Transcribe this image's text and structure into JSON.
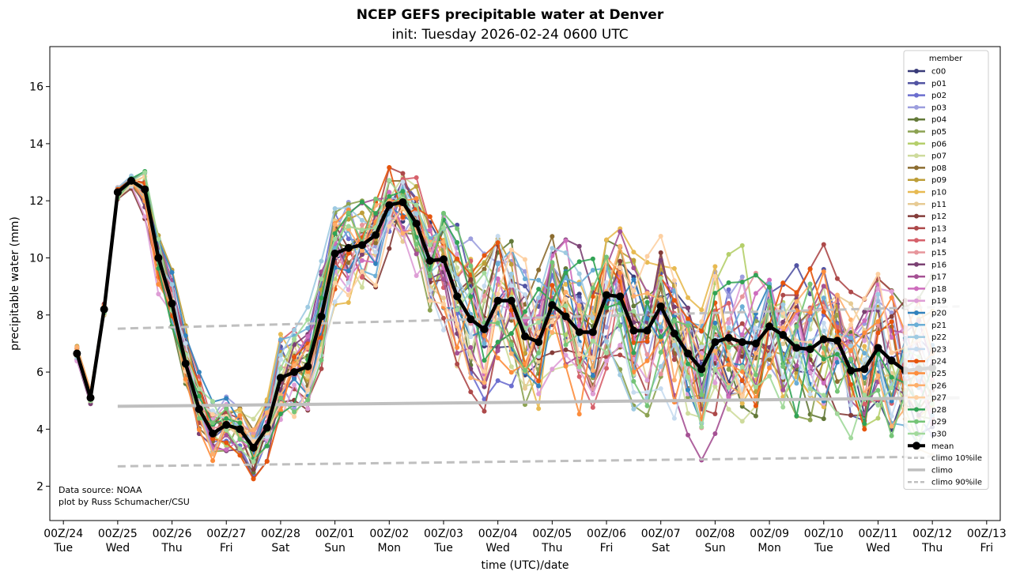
{
  "chart_data": {
    "type": "line",
    "title": "NCEP GEFS precipitable water at Denver",
    "subtitle": "init: Tuesday 2026-02-24 0600 UTC",
    "xlabel": "time (UTC)/date",
    "ylabel": "precipitable water (mm)",
    "ylim": [
      0.8,
      17.4
    ],
    "yticks": [
      2,
      4,
      6,
      8,
      10,
      12,
      14,
      16
    ],
    "x_days_range": [
      -0.25,
      17.25
    ],
    "x_step_days": 0.25,
    "xticks": [
      {
        "label": "00Z/24",
        "day": "Tue"
      },
      {
        "label": "00Z/25",
        "day": "Wed"
      },
      {
        "label": "00Z/26",
        "day": "Thu"
      },
      {
        "label": "00Z/27",
        "day": "Fri"
      },
      {
        "label": "00Z/28",
        "day": "Sat"
      },
      {
        "label": "00Z/01",
        "day": "Sun"
      },
      {
        "label": "00Z/02",
        "day": "Mon"
      },
      {
        "label": "00Z/03",
        "day": "Tue"
      },
      {
        "label": "00Z/04",
        "day": "Wed"
      },
      {
        "label": "00Z/05",
        "day": "Thu"
      },
      {
        "label": "00Z/06",
        "day": "Fri"
      },
      {
        "label": "00Z/07",
        "day": "Sat"
      },
      {
        "label": "00Z/08",
        "day": "Sun"
      },
      {
        "label": "00Z/09",
        "day": "Mon"
      },
      {
        "label": "00Z/10",
        "day": "Tue"
      },
      {
        "label": "00Z/11",
        "day": "Wed"
      },
      {
        "label": "00Z/12",
        "day": "Thu"
      },
      {
        "label": "00Z/13",
        "day": "Fri"
      }
    ],
    "legend_title": "member",
    "legend_position": "upper right",
    "members": [
      {
        "name": "c00",
        "color": "#393b79"
      },
      {
        "name": "p01",
        "color": "#5254a3"
      },
      {
        "name": "p02",
        "color": "#6b6ecf"
      },
      {
        "name": "p03",
        "color": "#9c9ede"
      },
      {
        "name": "p04",
        "color": "#637939"
      },
      {
        "name": "p05",
        "color": "#8ca252"
      },
      {
        "name": "p06",
        "color": "#b5cf6b"
      },
      {
        "name": "p07",
        "color": "#cedb9c"
      },
      {
        "name": "p08",
        "color": "#8c6d31"
      },
      {
        "name": "p09",
        "color": "#bd9e39"
      },
      {
        "name": "p10",
        "color": "#e7ba52"
      },
      {
        "name": "p11",
        "color": "#e7cb94"
      },
      {
        "name": "p12",
        "color": "#843c39"
      },
      {
        "name": "p13",
        "color": "#ad494a"
      },
      {
        "name": "p14",
        "color": "#d6616b"
      },
      {
        "name": "p15",
        "color": "#e7969c"
      },
      {
        "name": "p16",
        "color": "#7b4173"
      },
      {
        "name": "p17",
        "color": "#a55194"
      },
      {
        "name": "p18",
        "color": "#ce6dbd"
      },
      {
        "name": "p19",
        "color": "#de9ed6"
      },
      {
        "name": "p20",
        "color": "#3182bd"
      },
      {
        "name": "p21",
        "color": "#6baed6"
      },
      {
        "name": "p22",
        "color": "#9ecae1"
      },
      {
        "name": "p23",
        "color": "#c6dbef"
      },
      {
        "name": "p24",
        "color": "#e6550d"
      },
      {
        "name": "p25",
        "color": "#fd8d3c"
      },
      {
        "name": "p26",
        "color": "#fdae6b"
      },
      {
        "name": "p27",
        "color": "#fdd0a2"
      },
      {
        "name": "p28",
        "color": "#31a354"
      },
      {
        "name": "p29",
        "color": "#74c476"
      },
      {
        "name": "p30",
        "color": "#a1d99b"
      }
    ],
    "mean": {
      "name": "mean",
      "color": "#000000",
      "start_day": 0.25,
      "values": [
        6.65,
        5.1,
        8.2,
        12.3,
        12.7,
        12.4,
        10.0,
        8.4,
        6.3,
        4.7,
        3.85,
        4.15,
        4.0,
        3.35,
        4.05,
        5.8,
        6.0,
        6.2,
        7.95,
        10.15,
        10.35,
        10.45,
        10.8,
        11.85,
        11.95,
        11.2,
        9.9,
        9.95,
        8.65,
        7.85,
        7.5,
        8.5,
        8.5,
        7.25,
        7.05,
        8.35,
        7.95,
        7.4,
        7.4,
        8.7,
        8.65,
        7.45,
        7.45,
        8.3,
        7.35,
        6.65,
        6.1,
        7.05,
        7.2,
        7.05,
        7.0,
        7.6,
        7.3,
        6.85,
        6.8,
        7.15,
        7.1,
        6.05,
        6.1,
        6.85,
        6.4,
        6.05,
        6.1,
        6.15
      ]
    },
    "climo": {
      "name": "climo",
      "color": "#bfbfbf",
      "start_day": 1.0,
      "end_day": 16.5,
      "p10": [
        2.7,
        3.05
      ],
      "median": [
        4.8,
        5.1
      ],
      "p90": [
        7.52,
        8.3
      ],
      "p10_label": "climo 10%ile",
      "p90_label": "climo 90%ile"
    },
    "annotation": [
      "Data source: NOAA",
      "plot by Russ Schumacher/CSU"
    ]
  }
}
